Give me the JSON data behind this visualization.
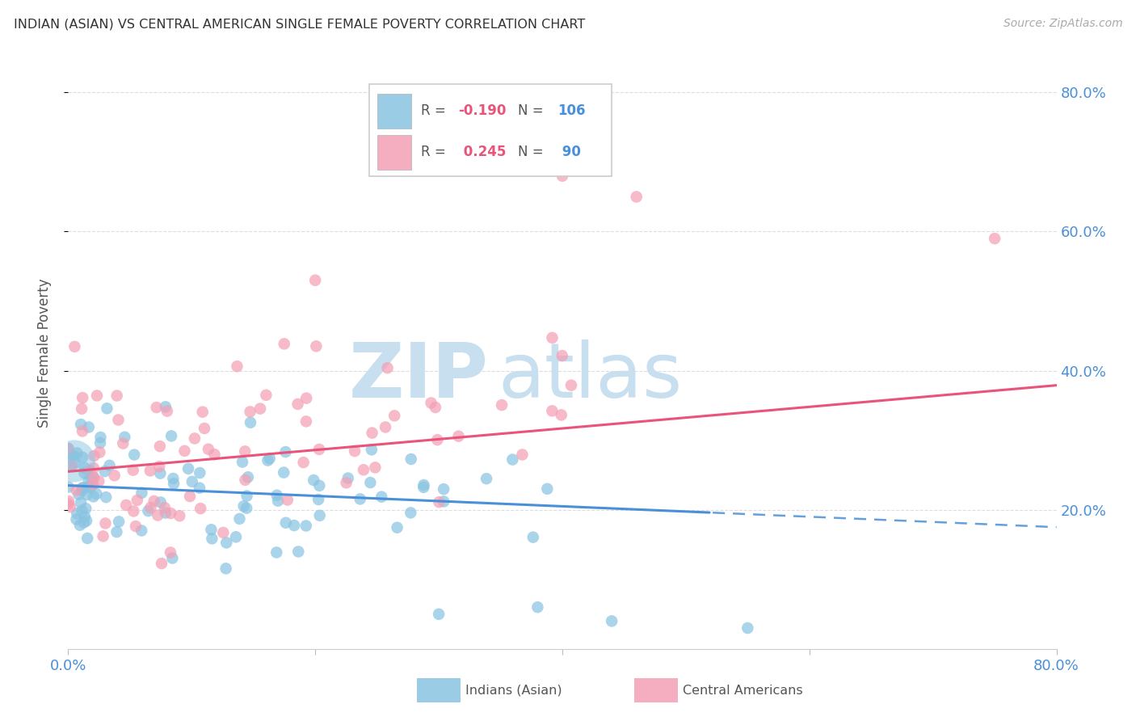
{
  "title": "INDIAN (ASIAN) VS CENTRAL AMERICAN SINGLE FEMALE POVERTY CORRELATION CHART",
  "source": "Source: ZipAtlas.com",
  "ylabel": "Single Female Poverty",
  "legend_label1": "Indians (Asian)",
  "legend_label2": "Central Americans",
  "color_blue": "#89c4e1",
  "color_pink": "#f4a0b5",
  "color_blue_dark": "#5a9fd4",
  "line_color_blue": "#4a90d9",
  "line_color_pink": "#e8547a",
  "background_color": "#ffffff",
  "watermark_zip": "ZIP",
  "watermark_atlas": "atlas",
  "watermark_color": "#c8dff0",
  "r_blue": -0.19,
  "n_blue": 106,
  "r_pink": 0.245,
  "n_pink": 90,
  "xlim": [
    0.0,
    0.8
  ],
  "ylim": [
    0.0,
    0.85
  ],
  "yticks": [
    0.2,
    0.4,
    0.6,
    0.8
  ],
  "xtick_positions": [
    0.0,
    0.2,
    0.4,
    0.6,
    0.8
  ],
  "r_text_color": "#e8547a",
  "n_text_color": "#4a90d9",
  "label_color": "#555555",
  "grid_color": "#dddddd",
  "title_color": "#333333",
  "source_color": "#aaaaaa",
  "tick_color": "#4a90d9"
}
